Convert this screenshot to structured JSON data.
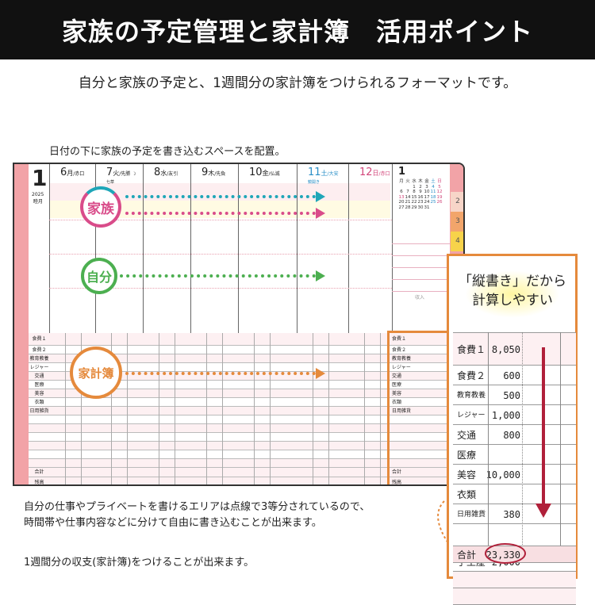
{
  "header": {
    "title": "家族の予定管理と家計簿　活用ポイント"
  },
  "subtitle": "自分と家族の予定と、1週間分の家計簿をつけられるフォーマットです。",
  "caption_top": "日付の下に家族の予定を書き込むスペースを配置。",
  "planner": {
    "month": "1",
    "year": "2025",
    "month_name": "睦月",
    "days": [
      {
        "num": "6",
        "dow": "月",
        "rokuyo": "/赤口",
        "note": "",
        "color": "#222"
      },
      {
        "num": "7",
        "dow": "火",
        "rokuyo": "/先勝 ☽",
        "note": "七草",
        "color": "#222"
      },
      {
        "num": "8",
        "dow": "水",
        "rokuyo": "/友引",
        "note": "",
        "color": "#222"
      },
      {
        "num": "9",
        "dow": "木",
        "rokuyo": "/先負",
        "note": "",
        "color": "#222"
      },
      {
        "num": "10",
        "dow": "金",
        "rokuyo": "/仏滅",
        "note": "",
        "color": "#222"
      },
      {
        "num": "11",
        "dow": "土",
        "rokuyo": "/大安",
        "note": "鏡開き",
        "color": "#2a8fc7"
      },
      {
        "num": "12",
        "dow": "日",
        "rokuyo": "/赤口",
        "note": "",
        "color": "#d2457a"
      }
    ],
    "mini_cal": {
      "month": "1",
      "head": [
        "月",
        "火",
        "水",
        "木",
        "金",
        "土",
        "日"
      ],
      "rows": [
        [
          "",
          "",
          "1",
          "2",
          "3",
          "4",
          "5"
        ],
        [
          "6",
          "7",
          "8",
          "9",
          "10",
          "11",
          "12"
        ],
        [
          "13",
          "14",
          "15",
          "16",
          "17",
          "18",
          "19"
        ],
        [
          "20",
          "21",
          "22",
          "23",
          "24",
          "25",
          "26"
        ],
        [
          "27",
          "28",
          "29",
          "30",
          "31",
          "",
          ""
        ]
      ]
    },
    "income_label": "収入",
    "tabs": [
      "2",
      "3",
      "4"
    ],
    "labels": {
      "family": "家族",
      "self": "自分",
      "budget": "家計簿"
    },
    "expense_rows": [
      "食費１",
      "食費２",
      "教育教養",
      "レジャー",
      "交通",
      "医療",
      "美容",
      "衣類",
      "日用雑貨",
      "",
      "",
      "",
      "",
      "",
      ""
    ],
    "total_label": "合計",
    "balance_label": "残高"
  },
  "callout": {
    "title_line1": "「縦書き」だから",
    "title_line2": "計算しやすい",
    "rows": [
      {
        "k": "食費１",
        "v": "8,050"
      },
      {
        "k": "食費２",
        "v": "600"
      },
      {
        "k": "教育教養",
        "v": "500"
      },
      {
        "k": "レジャー",
        "v": "1,000"
      },
      {
        "k": "交通",
        "v": "800"
      },
      {
        "k": "医療",
        "v": ""
      },
      {
        "k": "美容",
        "v": "10,000"
      },
      {
        "k": "衣類",
        "v": ""
      },
      {
        "k": "日用雑貨",
        "v": "380"
      },
      {
        "k": "",
        "v": ""
      },
      {
        "k": "手土産",
        "v": "2,000"
      },
      {
        "k": "",
        "v": ""
      },
      {
        "k": "",
        "v": ""
      }
    ],
    "total_label": "合計",
    "total_value": "23,330"
  },
  "caption_mid_1": "自分の仕事やプライベートを書けるエリアは点線で3等分されているので、",
  "caption_mid_2": "時間帯や仕事内容などに分けて自由に書き込むことが出来ます。",
  "caption_bottom": "1週間分の収支(家計簿)をつけることが出来ます。",
  "colors": {
    "family_teal": "#1fa6b8",
    "family_pink": "#d94c8a",
    "self_green": "#4caf50",
    "budget_orange": "#e58a3c",
    "arrow_red": "#b0203a"
  }
}
